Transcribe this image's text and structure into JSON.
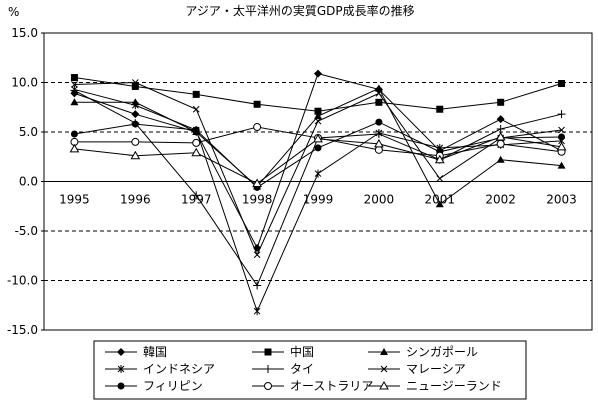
{
  "chart_data": {
    "type": "line",
    "title": "アジア・太平洋州の実質GDP成長率の推移",
    "ylabel": "%",
    "xlabel": "",
    "x": [
      "1995",
      "1996",
      "1997",
      "1998",
      "1999",
      "2000",
      "2001",
      "2002",
      "2003"
    ],
    "ylim": [
      -15,
      15
    ],
    "yticks": [
      "15.0",
      "10.0",
      "5.0",
      "0.0",
      "-5.0",
      "-10.0",
      "-15.0"
    ],
    "grid": "dashed horizontal at 10, 5, -5, -10",
    "legend_position": "bottom",
    "series": [
      {
        "name": "韓国",
        "marker": "diamond-filled",
        "values": [
          8.9,
          6.8,
          5.0,
          -6.7,
          10.9,
          9.3,
          3.1,
          6.3,
          3.1
        ]
      },
      {
        "name": "中国",
        "marker": "square-filled",
        "values": [
          10.5,
          9.6,
          8.8,
          7.8,
          7.1,
          8.0,
          7.3,
          8.0,
          9.9
        ]
      },
      {
        "name": "シンガポール",
        "marker": "triangle-filled",
        "values": [
          8.0,
          8.0,
          5.0,
          -0.5,
          6.6,
          9.4,
          -2.3,
          2.2,
          1.6
        ]
      },
      {
        "name": "インドネシア",
        "marker": "asterisk",
        "values": [
          9.3,
          7.7,
          5.2,
          -13.1,
          0.8,
          4.9,
          3.4,
          3.7,
          4.1
        ]
      },
      {
        "name": "タイ",
        "marker": "plus",
        "values": [
          9.2,
          5.9,
          -1.4,
          -10.5,
          4.4,
          4.8,
          2.2,
          5.3,
          6.8
        ]
      },
      {
        "name": "マレーシア",
        "marker": "x",
        "values": [
          9.8,
          10.0,
          7.3,
          -7.4,
          6.1,
          8.9,
          0.3,
          4.4,
          5.2
        ]
      },
      {
        "name": "フィリピン",
        "marker": "circle-filled",
        "values": [
          4.8,
          5.8,
          5.2,
          -0.6,
          3.4,
          6.0,
          3.0,
          4.4,
          4.5
        ]
      },
      {
        "name": "オーストラリア",
        "marker": "circle-open",
        "values": [
          4.0,
          4.0,
          3.9,
          5.5,
          4.4,
          3.2,
          2.6,
          3.8,
          3.0
        ]
      },
      {
        "name": "ニュージーランド",
        "marker": "triangle-open",
        "values": [
          3.3,
          2.6,
          2.9,
          -0.2,
          4.3,
          3.8,
          2.2,
          4.5,
          3.5
        ]
      }
    ]
  }
}
